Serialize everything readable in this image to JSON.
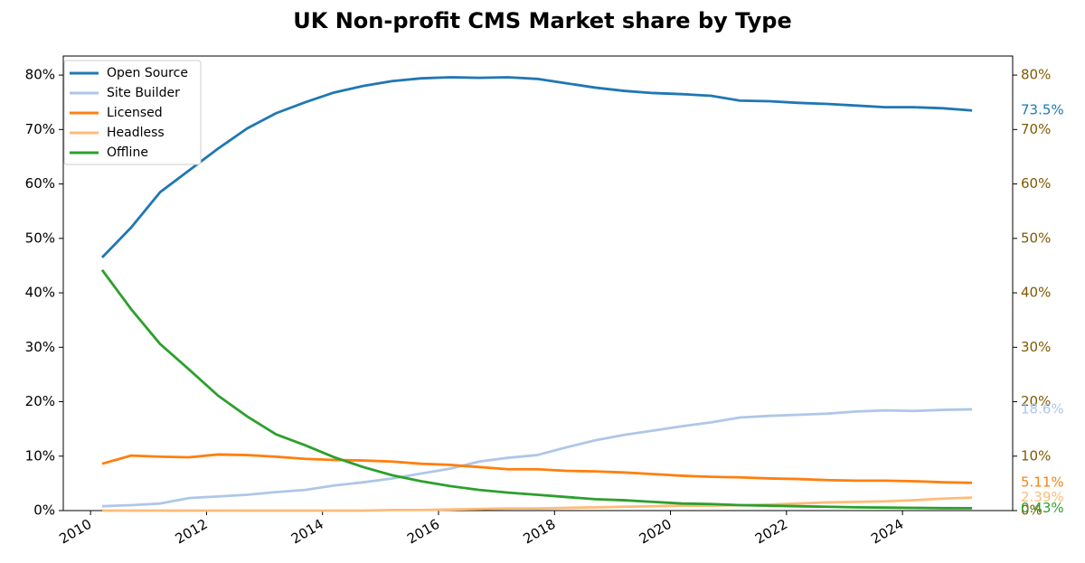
{
  "chart_data": {
    "type": "line",
    "title": "UK Non-profit CMS Market share by Type",
    "x": [
      2010.2,
      2010.7,
      2011.2,
      2011.7,
      2012.2,
      2012.7,
      2013.2,
      2013.7,
      2014.2,
      2014.7,
      2015.2,
      2015.7,
      2016.2,
      2016.7,
      2017.2,
      2017.7,
      2018.2,
      2018.7,
      2019.2,
      2019.7,
      2020.2,
      2020.7,
      2021.2,
      2021.7,
      2022.2,
      2022.7,
      2023.2,
      2023.7,
      2024.2,
      2024.7,
      2025.2
    ],
    "xlim": [
      2009.53,
      2025.9
    ],
    "xticks": [
      2010,
      2012,
      2014,
      2016,
      2018,
      2020,
      2022,
      2024
    ],
    "ylim": [
      0,
      83.5
    ],
    "yticks": [
      {
        "value": 0,
        "label": "0%"
      },
      {
        "value": 10,
        "label": "10%"
      },
      {
        "value": 20,
        "label": "20%"
      },
      {
        "value": 30,
        "label": "30%"
      },
      {
        "value": 40,
        "label": "40%"
      },
      {
        "value": 50,
        "label": "50%"
      },
      {
        "value": 60,
        "label": "60%"
      },
      {
        "value": 70,
        "label": "70%"
      },
      {
        "value": 80,
        "label": "80%"
      }
    ],
    "y2lim": [
      0,
      83.5
    ],
    "y2ticks": [
      {
        "value": 0,
        "label": "0%"
      },
      {
        "value": 10,
        "label": "10%"
      },
      {
        "value": 20,
        "label": "20%"
      },
      {
        "value": 30,
        "label": "30%"
      },
      {
        "value": 40,
        "label": "40%"
      },
      {
        "value": 50,
        "label": "50%"
      },
      {
        "value": 60,
        "label": "60%"
      },
      {
        "value": 70,
        "label": "70%"
      },
      {
        "value": 80,
        "label": "80%"
      }
    ],
    "y2color": "#7f5a00",
    "legend": "upper left",
    "series": [
      {
        "name": "Open Source",
        "color": "#1f77b4",
        "values": [
          46.5,
          52,
          58.5,
          62.5,
          66.5,
          70.2,
          73,
          75,
          76.8,
          78,
          78.9,
          79.4,
          79.6,
          79.5,
          79.6,
          79.3,
          78.5,
          77.7,
          77.1,
          76.7,
          76.5,
          76.2,
          75.3,
          75.2,
          74.9,
          74.7,
          74.4,
          74.1,
          74.1,
          73.9,
          73.5
        ],
        "value_labels": [
          null,
          null,
          null,
          null,
          null,
          null,
          null,
          null,
          null,
          null,
          null,
          null,
          null,
          null,
          null,
          null,
          null,
          null,
          null,
          null,
          null,
          null,
          null,
          null,
          null,
          null,
          null,
          null,
          null,
          null,
          "73.5%"
        ]
      },
      {
        "name": "Site Builder",
        "color": "#aec7e8",
        "values": [
          0.8,
          1,
          1.3,
          2.3,
          2.6,
          2.9,
          3.4,
          3.8,
          4.6,
          5.2,
          5.9,
          6.8,
          7.7,
          9,
          9.7,
          10.2,
          11.6,
          12.9,
          13.9,
          14.7,
          15.5,
          16.2,
          17.1,
          17.4,
          17.6,
          17.8,
          18.2,
          18.4,
          18.3,
          18.5,
          18.6
        ],
        "value_labels": [
          null,
          null,
          null,
          null,
          null,
          null,
          null,
          null,
          null,
          null,
          null,
          null,
          null,
          null,
          null,
          null,
          null,
          null,
          null,
          null,
          null,
          null,
          null,
          null,
          null,
          null,
          null,
          null,
          null,
          null,
          "18.6%"
        ]
      },
      {
        "name": "Licensed",
        "color": "#ff7f0e",
        "values": [
          8.6,
          10.1,
          9.9,
          9.8,
          10.3,
          10.2,
          9.9,
          9.5,
          9.3,
          9.2,
          9.0,
          8.6,
          8.4,
          8.0,
          7.6,
          7.6,
          7.3,
          7.2,
          7.0,
          6.7,
          6.4,
          6.2,
          6.1,
          5.9,
          5.8,
          5.6,
          5.5,
          5.5,
          5.4,
          5.2,
          5.11
        ],
        "value_labels": [
          null,
          null,
          null,
          null,
          null,
          null,
          null,
          null,
          null,
          null,
          null,
          null,
          null,
          null,
          null,
          null,
          null,
          null,
          null,
          null,
          null,
          null,
          null,
          null,
          null,
          null,
          null,
          null,
          null,
          null,
          "5.11%"
        ]
      },
      {
        "name": "Headless",
        "color": "#ffbb78",
        "values": [
          0,
          0,
          0,
          0,
          0,
          0,
          0,
          0,
          0,
          0,
          0.1,
          0.1,
          0.2,
          0.3,
          0.4,
          0.4,
          0.5,
          0.6,
          0.7,
          0.8,
          0.9,
          0.9,
          1.0,
          1.1,
          1.3,
          1.5,
          1.6,
          1.7,
          1.9,
          2.2,
          2.39
        ],
        "value_labels": [
          null,
          null,
          null,
          null,
          null,
          null,
          null,
          null,
          null,
          null,
          null,
          null,
          null,
          null,
          null,
          null,
          null,
          null,
          null,
          null,
          null,
          null,
          null,
          null,
          null,
          null,
          null,
          null,
          null,
          null,
          "2.39%"
        ]
      },
      {
        "name": "Offline",
        "color": "#2ca02c",
        "values": [
          44.2,
          37,
          30.6,
          25.9,
          21.1,
          17.3,
          14,
          12,
          9.8,
          8,
          6.5,
          5.4,
          4.5,
          3.8,
          3.3,
          2.9,
          2.5,
          2.1,
          1.9,
          1.6,
          1.3,
          1.2,
          1.0,
          0.9,
          0.8,
          0.7,
          0.6,
          0.55,
          0.5,
          0.45,
          0.43
        ],
        "value_labels": [
          null,
          null,
          null,
          null,
          null,
          null,
          null,
          null,
          null,
          null,
          null,
          null,
          null,
          null,
          null,
          null,
          null,
          null,
          null,
          null,
          null,
          null,
          null,
          null,
          null,
          null,
          null,
          null,
          null,
          null,
          "0.43%"
        ]
      }
    ]
  }
}
